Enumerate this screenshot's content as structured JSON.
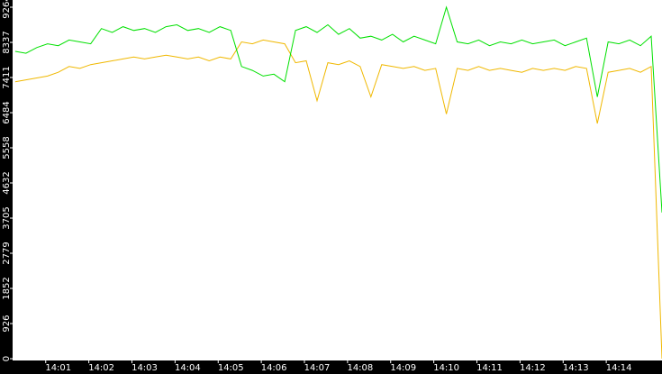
{
  "chart_data": {
    "type": "line",
    "x": [
      0,
      0.25,
      0.5,
      0.75,
      1,
      1.25,
      1.5,
      1.75,
      2,
      2.25,
      2.5,
      2.75,
      3,
      3.25,
      3.5,
      3.75,
      4,
      4.25,
      4.5,
      4.75,
      5,
      5.25,
      5.5,
      5.75,
      6,
      6.25,
      6.5,
      6.75,
      7,
      7.25,
      7.5,
      7.75,
      8,
      8.25,
      8.5,
      8.75,
      9,
      9.25,
      9.5,
      9.75,
      10,
      10.25,
      10.5,
      10.75,
      11,
      11.25,
      11.5,
      11.75,
      12,
      12.25,
      12.5,
      12.75,
      13,
      13.25,
      13.5,
      13.75,
      14,
      14.25,
      14.5,
      14.75,
      15
    ],
    "series": [
      {
        "color": "#f0b800",
        "values": [
          7300,
          7350,
          7400,
          7450,
          7550,
          7700,
          7650,
          7750,
          7800,
          7850,
          7900,
          7950,
          7900,
          7950,
          8000,
          7950,
          7900,
          7950,
          7850,
          7950,
          7900,
          8350,
          8300,
          8400,
          8350,
          8300,
          7800,
          7850,
          6800,
          7800,
          7750,
          7850,
          7700,
          6900,
          7750,
          7700,
          7650,
          7700,
          7600,
          7650,
          6450,
          7650,
          7600,
          7700,
          7600,
          7650,
          7600,
          7550,
          7650,
          7600,
          7650,
          7600,
          7700,
          7650,
          6200,
          7550,
          7600,
          7650,
          7550,
          7700,
          0
        ]
      },
      {
        "color": "#00e000",
        "values": [
          8100,
          8050,
          8200,
          8300,
          8250,
          8400,
          8350,
          8300,
          8700,
          8600,
          8750,
          8650,
          8700,
          8600,
          8750,
          8800,
          8650,
          8700,
          8600,
          8750,
          8650,
          7700,
          7600,
          7450,
          7500,
          7300,
          8650,
          8750,
          8600,
          8800,
          8550,
          8700,
          8450,
          8500,
          8400,
          8550,
          8350,
          8500,
          8400,
          8300,
          9264,
          8350,
          8300,
          8400,
          8250,
          8350,
          8300,
          8400,
          8300,
          8350,
          8400,
          8250,
          8350,
          8450,
          6900,
          8350,
          8300,
          8400,
          8250,
          8500,
          3850
        ]
      }
    ],
    "xlim": [
      -0.06,
      15
    ],
    "xticks": [
      {
        "value": 1,
        "label": "14:01"
      },
      {
        "value": 2,
        "label": "14:02"
      },
      {
        "value": 3,
        "label": "14:03"
      },
      {
        "value": 4,
        "label": "14:04"
      },
      {
        "value": 5,
        "label": "14:05"
      },
      {
        "value": 6,
        "label": "14:06"
      },
      {
        "value": 7,
        "label": "14:07"
      },
      {
        "value": 8,
        "label": "14:08"
      },
      {
        "value": 9,
        "label": "14:09"
      },
      {
        "value": 10,
        "label": "14:10"
      },
      {
        "value": 11,
        "label": "14:11"
      },
      {
        "value": 12,
        "label": "14:12"
      },
      {
        "value": 13,
        "label": "14:13"
      },
      {
        "value": 14,
        "label": "14:14"
      }
    ],
    "ylim": [
      0,
      9264
    ],
    "yticks": [
      0,
      926,
      1852,
      2779,
      3705,
      4632,
      5558,
      6484,
      7411,
      8337,
      9264
    ]
  }
}
